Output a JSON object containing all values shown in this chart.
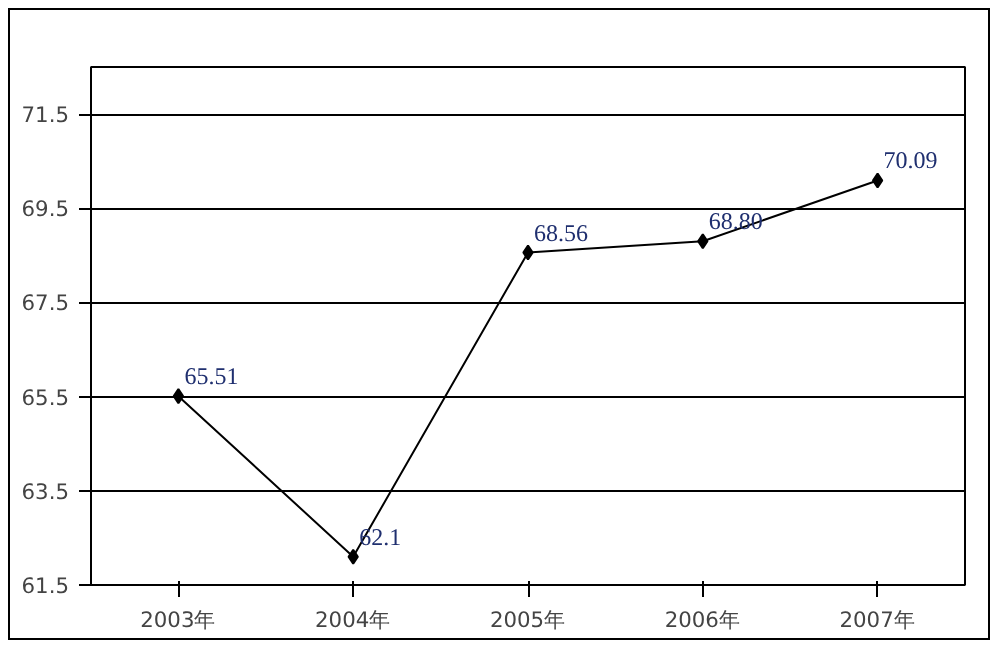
{
  "chart_data": {
    "type": "line",
    "categories": [
      "2003年",
      "2004年",
      "2005年",
      "2006年",
      "2007年"
    ],
    "values": [
      65.51,
      62.1,
      68.56,
      68.8,
      70.09
    ],
    "value_labels": [
      "65.51",
      "62.1",
      "68.56",
      "68.80",
      "70.09"
    ],
    "color": "#000000",
    "marker": "diamond",
    "line_style": "solid",
    "ylim": [
      61.5,
      72.5
    ],
    "yticks": [
      61.5,
      63.5,
      65.5,
      67.5,
      69.5,
      71.5
    ],
    "grid": "y"
  }
}
